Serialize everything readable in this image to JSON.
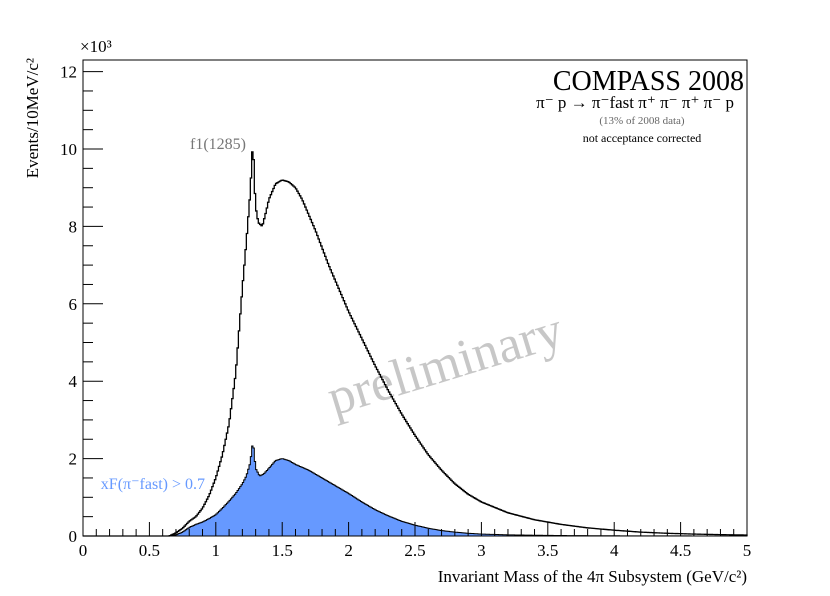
{
  "chart_data": {
    "type": "area",
    "experiment": "COMPASS 2008",
    "reaction": "π⁻ p → π⁻fast π⁺ π⁻ π⁺ π⁻ p",
    "data_note": "(13% of 2008 data)",
    "correction_note": "not acceptance corrected",
    "watermark": "preliminary",
    "xlabel": "Invariant Mass of the 4π Subsystem (GeV/c²)",
    "ylabel": "Events/10MeV/c²",
    "y_multiplier": "×10³",
    "xlim": [
      0,
      5
    ],
    "ylim": [
      0,
      12.3
    ],
    "xticks": [
      0,
      0.5,
      1,
      1.5,
      2,
      2.5,
      3,
      3.5,
      4,
      4.5,
      5
    ],
    "xtick_labels": [
      "0",
      "0.5",
      "1",
      "1.5",
      "2",
      "2.5",
      "3",
      "3.5",
      "4",
      "4.5",
      "5"
    ],
    "yticks": [
      0,
      2,
      4,
      6,
      8,
      10,
      12
    ],
    "ytick_labels": [
      "0",
      "2",
      "4",
      "6",
      "8",
      "10",
      "12"
    ],
    "grid": false,
    "annotations": [
      {
        "text": "f1(1285)",
        "x": 1.28,
        "y": 10.0
      }
    ],
    "series": [
      {
        "name": "",
        "style": "outline",
        "color": "#000000",
        "x": [
          0.65,
          0.7,
          0.75,
          0.8,
          0.85,
          0.9,
          0.95,
          1.0,
          1.05,
          1.1,
          1.15,
          1.2,
          1.23,
          1.26,
          1.27,
          1.28,
          1.29,
          1.3,
          1.32,
          1.35,
          1.38,
          1.4,
          1.45,
          1.5,
          1.55,
          1.6,
          1.65,
          1.7,
          1.75,
          1.8,
          1.85,
          1.9,
          1.95,
          2.0,
          2.1,
          2.2,
          2.3,
          2.4,
          2.5,
          2.6,
          2.7,
          2.8,
          2.9,
          3.0,
          3.2,
          3.4,
          3.6,
          3.8,
          4.0,
          4.2,
          4.4,
          4.6,
          4.8,
          5.0
        ],
        "y": [
          0.0,
          0.08,
          0.2,
          0.38,
          0.5,
          0.72,
          1.05,
          1.5,
          2.1,
          2.9,
          4.2,
          6.4,
          7.6,
          8.9,
          9.6,
          10.25,
          9.2,
          8.5,
          8.1,
          8.0,
          8.4,
          8.7,
          9.1,
          9.2,
          9.15,
          9.0,
          8.7,
          8.3,
          7.9,
          7.45,
          7.0,
          6.6,
          6.2,
          5.8,
          5.1,
          4.4,
          3.75,
          3.15,
          2.6,
          2.1,
          1.7,
          1.35,
          1.08,
          0.88,
          0.6,
          0.42,
          0.3,
          0.21,
          0.15,
          0.1,
          0.07,
          0.05,
          0.035,
          0.025
        ]
      },
      {
        "name": "xF(π⁻fast) > 0.7",
        "style": "filled",
        "color": "#6699ff",
        "x": [
          0.65,
          0.7,
          0.75,
          0.8,
          0.85,
          0.9,
          0.95,
          1.0,
          1.05,
          1.1,
          1.15,
          1.2,
          1.23,
          1.26,
          1.27,
          1.28,
          1.29,
          1.3,
          1.33,
          1.36,
          1.4,
          1.45,
          1.5,
          1.55,
          1.6,
          1.7,
          1.8,
          1.9,
          2.0,
          2.1,
          2.2,
          2.3,
          2.4,
          2.5,
          2.6,
          2.7,
          2.8,
          2.9,
          3.0,
          3.2,
          3.4,
          3.6,
          3.8,
          4.0,
          4.5,
          5.0
        ],
        "y": [
          0.0,
          0.03,
          0.1,
          0.22,
          0.3,
          0.36,
          0.45,
          0.55,
          0.72,
          0.9,
          1.1,
          1.35,
          1.55,
          1.9,
          2.2,
          2.45,
          2.1,
          1.75,
          1.55,
          1.6,
          1.75,
          1.95,
          2.0,
          1.95,
          1.85,
          1.7,
          1.5,
          1.3,
          1.1,
          0.88,
          0.68,
          0.52,
          0.38,
          0.28,
          0.2,
          0.14,
          0.1,
          0.07,
          0.05,
          0.03,
          0.02,
          0.012,
          0.008,
          0.005,
          0.002,
          0.0
        ]
      }
    ]
  }
}
